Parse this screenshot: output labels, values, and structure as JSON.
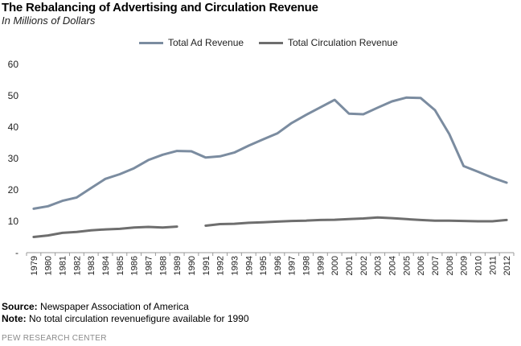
{
  "header": {
    "title": "The Rebalancing of Advertising and Circulation Revenue",
    "subtitle": "In Millions of Dollars"
  },
  "footer": {
    "source_label": "Source:",
    "source_text": "Newspaper Association of America",
    "note_label": "Note:",
    "note_text": "No total circulation revenuefigure available for 1990",
    "credit": "PEW RESEARCH CENTER"
  },
  "chart_data": {
    "type": "line",
    "title": "The Rebalancing of Advertising and Circulation Revenue",
    "subtitle": "In Millions of Dollars",
    "xlabel": "",
    "ylabel": "",
    "ylim": [
      0,
      60
    ],
    "yticks": [
      0,
      10,
      20,
      30,
      40,
      50,
      60
    ],
    "ytick_labels": [
      "-",
      "10",
      "20",
      "30",
      "40",
      "50",
      "60"
    ],
    "grid": false,
    "legend_position": "top",
    "x": [
      "1979",
      "1980",
      "1981",
      "1982",
      "1983",
      "1984",
      "1985",
      "1986",
      "1987",
      "1988",
      "1989",
      "1990",
      "1991",
      "1992",
      "1993",
      "1994",
      "1995",
      "1996",
      "1997",
      "1998",
      "1999",
      "2000",
      "2001",
      "2002",
      "2003",
      "2004",
      "2005",
      "2006",
      "2007",
      "2008",
      "2009",
      "2010",
      "2011",
      "2012"
    ],
    "series": [
      {
        "name": "Total Ad Revenue",
        "color": "#7b8ca0",
        "values": [
          14.0,
          14.8,
          16.5,
          17.6,
          20.6,
          23.5,
          25.0,
          26.9,
          29.5,
          31.2,
          32.4,
          32.3,
          30.3,
          30.7,
          31.9,
          34.1,
          36.1,
          38.0,
          41.3,
          43.9,
          46.3,
          48.7,
          44.3,
          44.1,
          46.2,
          48.2,
          49.4,
          49.3,
          45.4,
          37.8,
          27.6,
          25.8,
          23.9,
          22.3
        ]
      },
      {
        "name": "Total Circulation Revenue",
        "color": "#6e6e6e",
        "values": [
          5.0,
          5.5,
          6.3,
          6.6,
          7.1,
          7.4,
          7.6,
          8.0,
          8.2,
          8.0,
          8.3,
          null,
          8.6,
          9.1,
          9.2,
          9.5,
          9.7,
          9.9,
          10.1,
          10.2,
          10.4,
          10.5,
          10.7,
          10.9,
          11.2,
          11.0,
          10.7,
          10.4,
          10.2,
          10.2,
          10.1,
          10.0,
          10.0,
          10.4
        ]
      }
    ]
  }
}
